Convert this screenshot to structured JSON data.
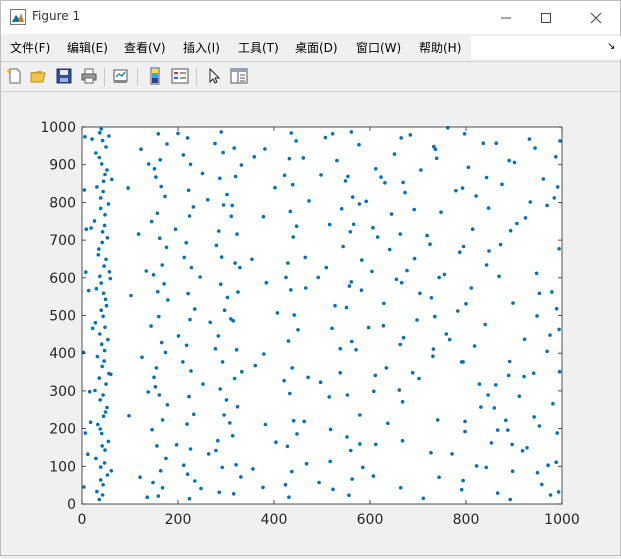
{
  "window": {
    "title": "Figure 1",
    "icons": {
      "app": "matlab-figure-icon",
      "minimize": "minimize-icon",
      "maximize": "maximize-icon",
      "close": "close-icon"
    }
  },
  "menu": {
    "items": [
      "文件(F)",
      "编辑(E)",
      "查看(V)",
      "插入(I)",
      "工具(T)",
      "桌面(D)",
      "窗口(W)",
      "帮助(H)"
    ]
  },
  "toolbar": {
    "buttons": [
      "new-figure-icon",
      "open-file-icon",
      "save-icon",
      "print-icon",
      "link-plot-icon",
      "insert-colorbar-icon",
      "insert-legend-icon",
      "edit-plot-arrow-icon",
      "property-inspector-icon"
    ]
  },
  "colors": {
    "marker": "#0072bd",
    "axes_bg": "#ffffff",
    "figure_bg": "#f0f0f0"
  },
  "chart_data": {
    "type": "scatter",
    "title": "",
    "xlabel": "",
    "ylabel": "",
    "xlim": [
      0,
      1000
    ],
    "ylim": [
      0,
      1000
    ],
    "xticks": [
      0,
      200,
      400,
      600,
      800,
      1000
    ],
    "yticks": [
      0,
      100,
      200,
      300,
      400,
      500,
      600,
      700,
      800,
      900,
      1000
    ],
    "grid": false,
    "legend": "none",
    "marker_color": "#0072bd",
    "points": [
      [
        36,
        12
      ],
      [
        44,
        51
      ],
      [
        39,
        98
      ],
      [
        48,
        143
      ],
      [
        41,
        187
      ],
      [
        45,
        233
      ],
      [
        38,
        276
      ],
      [
        50,
        318
      ],
      [
        42,
        365
      ],
      [
        47,
        407
      ],
      [
        37,
        451
      ],
      [
        44,
        498
      ],
      [
        49,
        543
      ],
      [
        40,
        586
      ],
      [
        46,
        631
      ],
      [
        35,
        676
      ],
      [
        43,
        722
      ],
      [
        48,
        767
      ],
      [
        39,
        812
      ],
      [
        45,
        856
      ],
      [
        41,
        902
      ],
      [
        50,
        947
      ],
      [
        37,
        985
      ],
      [
        31,
        33
      ],
      [
        53,
        77
      ],
      [
        29,
        121
      ],
      [
        55,
        166
      ],
      [
        33,
        211
      ],
      [
        52,
        256
      ],
      [
        27,
        301
      ],
      [
        56,
        346
      ],
      [
        32,
        391
      ],
      [
        54,
        436
      ],
      [
        28,
        481
      ],
      [
        51,
        526
      ],
      [
        30,
        571
      ],
      [
        57,
        616
      ],
      [
        34,
        661
      ],
      [
        53,
        706
      ],
      [
        26,
        751
      ],
      [
        55,
        796
      ],
      [
        31,
        841
      ],
      [
        52,
        886
      ],
      [
        29,
        931
      ],
      [
        56,
        976
      ],
      [
        43,
        24
      ],
      [
        39,
        64
      ],
      [
        47,
        109
      ],
      [
        42,
        154
      ],
      [
        38,
        199
      ],
      [
        49,
        244
      ],
      [
        44,
        289
      ],
      [
        36,
        334
      ],
      [
        46,
        379
      ],
      [
        41,
        424
      ],
      [
        48,
        469
      ],
      [
        40,
        514
      ],
      [
        45,
        559
      ],
      [
        37,
        604
      ],
      [
        50,
        649
      ],
      [
        42,
        694
      ],
      [
        47,
        739
      ],
      [
        39,
        784
      ],
      [
        44,
        829
      ],
      [
        48,
        874
      ],
      [
        36,
        919
      ],
      [
        43,
        964
      ],
      [
        40,
        995
      ],
      [
        61,
        88
      ],
      [
        18,
        217
      ],
      [
        60,
        344
      ],
      [
        22,
        466
      ],
      [
        59,
        598
      ],
      [
        19,
        732
      ],
      [
        62,
        861
      ],
      [
        21,
        968
      ],
      [
        4,
        45
      ],
      [
        7,
        188
      ],
      [
        3,
        402
      ],
      [
        8,
        615
      ],
      [
        5,
        833
      ],
      [
        6,
        974
      ],
      [
        12,
        132
      ],
      [
        14,
        566
      ],
      [
        9,
        729
      ],
      [
        16,
        298
      ],
      [
        159,
        21
      ],
      [
        164,
        88
      ],
      [
        156,
        154
      ],
      [
        168,
        223
      ],
      [
        161,
        289
      ],
      [
        155,
        361
      ],
      [
        166,
        428
      ],
      [
        160,
        497
      ],
      [
        158,
        563
      ],
      [
        167,
        634
      ],
      [
        162,
        705
      ],
      [
        157,
        771
      ],
      [
        165,
        842
      ],
      [
        163,
        913
      ],
      [
        159,
        982
      ],
      [
        148,
        57
      ],
      [
        175,
        121
      ],
      [
        146,
        197
      ],
      [
        178,
        263
      ],
      [
        150,
        336
      ],
      [
        174,
        402
      ],
      [
        144,
        472
      ],
      [
        179,
        541
      ],
      [
        149,
        608
      ],
      [
        176,
        681
      ],
      [
        145,
        749
      ],
      [
        173,
        816
      ],
      [
        151,
        889
      ],
      [
        177,
        955
      ],
      [
        168,
        43
      ],
      [
        153,
        311
      ],
      [
        171,
        584
      ],
      [
        154,
        867
      ],
      [
        224,
        14
      ],
      [
        220,
        79
      ],
      [
        226,
        146
      ],
      [
        219,
        212
      ],
      [
        223,
        285
      ],
      [
        227,
        353
      ],
      [
        218,
        421
      ],
      [
        225,
        489
      ],
      [
        221,
        558
      ],
      [
        228,
        627
      ],
      [
        217,
        693
      ],
      [
        224,
        764
      ],
      [
        222,
        832
      ],
      [
        226,
        901
      ],
      [
        220,
        971
      ],
      [
        212,
        103
      ],
      [
        233,
        238
      ],
      [
        210,
        377
      ],
      [
        235,
        517
      ],
      [
        213,
        654
      ],
      [
        232,
        788
      ],
      [
        211,
        926
      ],
      [
        235,
        61
      ],
      [
        286,
        31
      ],
      [
        292,
        97
      ],
      [
        283,
        168
      ],
      [
        296,
        236
      ],
      [
        288,
        305
      ],
      [
        293,
        377
      ],
      [
        284,
        446
      ],
      [
        297,
        514
      ],
      [
        289,
        583
      ],
      [
        291,
        655
      ],
      [
        285,
        724
      ],
      [
        295,
        793
      ],
      [
        287,
        864
      ],
      [
        294,
        932
      ],
      [
        290,
        987
      ],
      [
        279,
        142
      ],
      [
        301,
        276
      ],
      [
        278,
        412
      ],
      [
        303,
        548
      ],
      [
        280,
        686
      ],
      [
        302,
        821
      ],
      [
        277,
        956
      ],
      [
        316,
        27
      ],
      [
        321,
        104
      ],
      [
        314,
        181
      ],
      [
        324,
        258
      ],
      [
        318,
        333
      ],
      [
        322,
        409
      ],
      [
        315,
        486
      ],
      [
        325,
        562
      ],
      [
        319,
        639
      ],
      [
        323,
        716
      ],
      [
        313,
        792
      ],
      [
        320,
        869
      ],
      [
        317,
        944
      ],
      [
        331,
        72
      ],
      [
        308,
        215
      ],
      [
        333,
        351
      ],
      [
        310,
        491
      ],
      [
        329,
        627
      ],
      [
        311,
        763
      ],
      [
        332,
        899
      ],
      [
        431,
        18
      ],
      [
        437,
        86
      ],
      [
        428,
        153
      ],
      [
        441,
        221
      ],
      [
        433,
        293
      ],
      [
        438,
        361
      ],
      [
        430,
        432
      ],
      [
        442,
        501
      ],
      [
        435,
        568
      ],
      [
        429,
        639
      ],
      [
        440,
        708
      ],
      [
        434,
        776
      ],
      [
        439,
        847
      ],
      [
        432,
        916
      ],
      [
        436,
        984
      ],
      [
        424,
        51
      ],
      [
        448,
        186
      ],
      [
        421,
        327
      ],
      [
        450,
        462
      ],
      [
        425,
        601
      ],
      [
        447,
        737
      ],
      [
        422,
        872
      ],
      [
        446,
        963
      ],
      [
        377,
        44
      ],
      [
        382,
        211
      ],
      [
        379,
        398
      ],
      [
        384,
        587
      ],
      [
        378,
        762
      ],
      [
        381,
        942
      ],
      [
        468,
        107
      ],
      [
        471,
        336
      ],
      [
        466,
        573
      ],
      [
        473,
        804
      ],
      [
        556,
        23
      ],
      [
        560,
        142
      ],
      [
        553,
        289
      ],
      [
        562,
        431
      ],
      [
        557,
        578
      ],
      [
        559,
        722
      ],
      [
        554,
        869
      ],
      [
        561,
        987
      ],
      [
        563,
        66
      ],
      [
        551,
        521
      ],
      [
        564,
        814
      ],
      [
        523,
        39
      ],
      [
        585,
        97
      ],
      [
        612,
        158
      ],
      [
        637,
        214
      ],
      [
        668,
        271
      ],
      [
        702,
        333
      ],
      [
        731,
        392
      ],
      [
        759,
        451
      ],
      [
        783,
        512
      ],
      [
        811,
        573
      ],
      [
        843,
        634
      ],
      [
        872,
        688
      ],
      [
        906,
        744
      ],
      [
        934,
        801
      ],
      [
        961,
        862
      ],
      [
        987,
        921
      ],
      [
        507,
        972
      ],
      [
        531,
        911
      ],
      [
        549,
        857
      ],
      [
        578,
        796
      ],
      [
        606,
        733
      ],
      [
        641,
        675
      ],
      [
        677,
        619
      ],
      [
        704,
        559
      ],
      [
        735,
        497
      ],
      [
        766,
        436
      ],
      [
        794,
        377
      ],
      [
        828,
        318
      ],
      [
        859,
        255
      ],
      [
        887,
        196
      ],
      [
        918,
        141
      ],
      [
        949,
        83
      ],
      [
        976,
        24
      ],
      [
        515,
        284
      ],
      [
        538,
        348
      ],
      [
        571,
        409
      ],
      [
        597,
        468
      ],
      [
        629,
        532
      ],
      [
        655,
        596
      ],
      [
        693,
        651
      ],
      [
        719,
        712
      ],
      [
        748,
        774
      ],
      [
        779,
        831
      ],
      [
        805,
        893
      ],
      [
        836,
        957
      ],
      [
        866,
        29
      ],
      [
        897,
        87
      ],
      [
        927,
        149
      ],
      [
        953,
        207
      ],
      [
        981,
        266
      ],
      [
        509,
        627
      ],
      [
        544,
        683
      ],
      [
        566,
        742
      ],
      [
        592,
        803
      ],
      [
        623,
        867
      ],
      [
        651,
        928
      ],
      [
        684,
        979
      ],
      [
        711,
        15
      ],
      [
        744,
        71
      ],
      [
        771,
        133
      ],
      [
        798,
        192
      ],
      [
        831,
        257
      ],
      [
        862,
        316
      ],
      [
        891,
        378
      ],
      [
        922,
        437
      ],
      [
        948,
        499
      ],
      [
        979,
        562
      ],
      [
        517,
        113
      ],
      [
        552,
        178
      ],
      [
        579,
        236
      ],
      [
        608,
        299
      ],
      [
        634,
        361
      ],
      [
        663,
        423
      ],
      [
        698,
        488
      ],
      [
        728,
        547
      ],
      [
        755,
        609
      ],
      [
        787,
        668
      ],
      [
        814,
        729
      ],
      [
        847,
        785
      ],
      [
        875,
        848
      ],
      [
        901,
        906
      ],
      [
        932,
        968
      ],
      [
        958,
        52
      ],
      [
        988,
        111
      ],
      [
        527,
        526
      ],
      [
        561,
        589
      ],
      [
        583,
        647
      ],
      [
        616,
        708
      ],
      [
        645,
        769
      ],
      [
        673,
        826
      ],
      [
        706,
        886
      ],
      [
        736,
        941
      ],
      [
        762,
        998
      ],
      [
        791,
        38
      ],
      [
        822,
        101
      ],
      [
        853,
        162
      ],
      [
        883,
        222
      ],
      [
        911,
        286
      ],
      [
        941,
        347
      ],
      [
        969,
        405
      ],
      [
        994,
        463
      ],
      [
        664,
        43
      ],
      [
        668,
        168
      ],
      [
        661,
        302
      ],
      [
        670,
        441
      ],
      [
        666,
        587
      ],
      [
        663,
        716
      ],
      [
        669,
        853
      ],
      [
        665,
        971
      ],
      [
        794,
        62
      ],
      [
        798,
        219
      ],
      [
        791,
        377
      ],
      [
        800,
        531
      ],
      [
        795,
        683
      ],
      [
        793,
        838
      ],
      [
        797,
        982
      ],
      [
        842,
        97
      ],
      [
        846,
        289
      ],
      [
        840,
        476
      ],
      [
        848,
        671
      ],
      [
        843,
        866
      ],
      [
        892,
        12
      ],
      [
        896,
        158
      ],
      [
        889,
        341
      ],
      [
        898,
        533
      ],
      [
        893,
        725
      ],
      [
        890,
        911
      ],
      [
        993,
        32
      ],
      [
        990,
        188
      ],
      [
        995,
        351
      ],
      [
        989,
        518
      ],
      [
        994,
        677
      ],
      [
        991,
        841
      ],
      [
        996,
        963
      ],
      [
        971,
        103
      ],
      [
        975,
        448
      ],
      [
        969,
        792
      ],
      [
        942,
        231
      ],
      [
        947,
        612
      ],
      [
        944,
        944
      ],
      [
        727,
        136
      ],
      [
        732,
        411
      ],
      [
        725,
        689
      ],
      [
        733,
        948
      ],
      [
        607,
        74
      ],
      [
        611,
        341
      ],
      [
        604,
        617
      ],
      [
        612,
        889
      ],
      [
        518,
        198
      ],
      [
        521,
        466
      ],
      [
        516,
        741
      ],
      [
        522,
        982
      ],
      [
        494,
        57
      ],
      [
        497,
        323
      ],
      [
        492,
        601
      ],
      [
        498,
        873
      ],
      [
        356,
        93
      ],
      [
        361,
        367
      ],
      [
        354,
        649
      ],
      [
        359,
        921
      ],
      [
        248,
        41
      ],
      [
        252,
        318
      ],
      [
        246,
        602
      ],
      [
        251,
        877
      ],
      [
        197,
        157
      ],
      [
        201,
        446
      ],
      [
        195,
        729
      ],
      [
        200,
        983
      ],
      [
        121,
        71
      ],
      [
        125,
        389
      ],
      [
        118,
        716
      ],
      [
        123,
        941
      ],
      [
        98,
        234
      ],
      [
        102,
        553
      ],
      [
        96,
        838
      ],
      [
        136,
        18
      ],
      [
        138,
        297
      ],
      [
        134,
        618
      ],
      [
        139,
        902
      ],
      [
        264,
        133
      ],
      [
        267,
        482
      ],
      [
        262,
        807
      ],
      [
        404,
        164
      ],
      [
        407,
        507
      ],
      [
        402,
        839
      ],
      [
        463,
        219
      ],
      [
        465,
        654
      ],
      [
        461,
        918
      ],
      [
        538,
        412
      ],
      [
        541,
        783
      ],
      [
        579,
        159
      ],
      [
        582,
        567
      ],
      [
        577,
        953
      ],
      [
        628,
        473
      ],
      [
        631,
        852
      ],
      [
        689,
        348
      ],
      [
        692,
        781
      ],
      [
        741,
        223
      ],
      [
        744,
        601
      ],
      [
        739,
        917
      ],
      [
        818,
        419
      ],
      [
        821,
        817
      ],
      [
        866,
        196
      ],
      [
        869,
        604
      ],
      [
        863,
        957
      ],
      [
        921,
        338
      ],
      [
        924,
        759
      ],
      [
        953,
        559
      ],
      [
        984,
        812
      ]
    ]
  }
}
